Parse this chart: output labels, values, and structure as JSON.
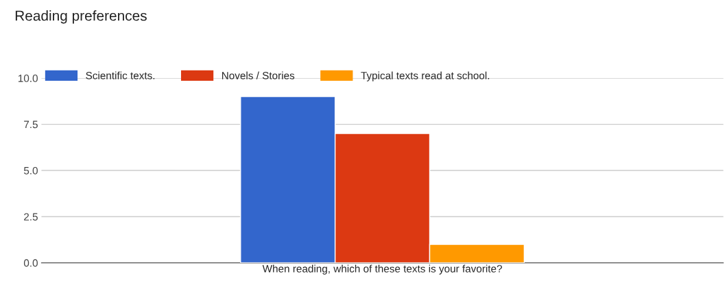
{
  "chart_data": {
    "type": "bar",
    "title": "Reading preferences",
    "categories": [
      "When reading, which of these texts is your favorite?"
    ],
    "series": [
      {
        "name": "Scientific texts.",
        "color": "#3366cc",
        "values": [
          9
        ]
      },
      {
        "name": "Novels / Stories",
        "color": "#dc3912",
        "values": [
          7
        ]
      },
      {
        "name": "Typical texts read at school.",
        "color": "#ff9900",
        "values": [
          1
        ]
      }
    ],
    "ylim": [
      0,
      10
    ],
    "yticks": [
      {
        "value": 0,
        "label": "0.0"
      },
      {
        "value": 2.5,
        "label": "2.5"
      },
      {
        "value": 5,
        "label": "5.0"
      },
      {
        "value": 7.5,
        "label": "7.5"
      },
      {
        "value": 10,
        "label": "10.0"
      }
    ],
    "grid": "y",
    "legend": "top left"
  }
}
